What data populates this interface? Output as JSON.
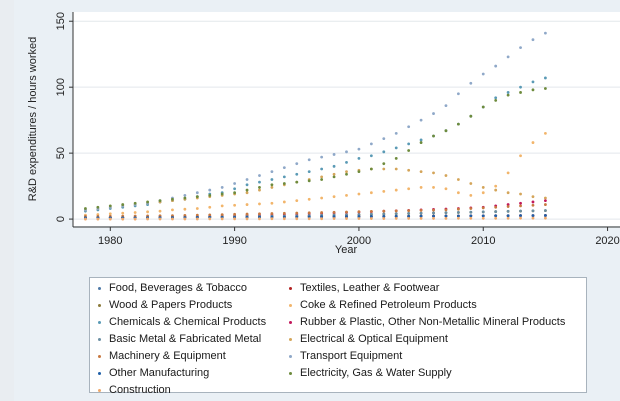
{
  "chart_data": {
    "type": "scatter",
    "xlabel": "Year",
    "ylabel": "R&D expenditures / hours worked",
    "xlim": [
      1977,
      2021
    ],
    "ylim": [
      -6,
      157
    ],
    "x_ticks": [
      1980,
      1990,
      2000,
      2010,
      2020
    ],
    "y_ticks": [
      0,
      50,
      100,
      150
    ],
    "grid": true,
    "legend_position": "bottom",
    "x": [
      1978,
      1979,
      1980,
      1981,
      1982,
      1983,
      1984,
      1985,
      1986,
      1987,
      1988,
      1989,
      1990,
      1991,
      1992,
      1993,
      1994,
      1995,
      1996,
      1997,
      1998,
      1999,
      2000,
      2001,
      2002,
      2003,
      2004,
      2005,
      2006,
      2007,
      2008,
      2009,
      2010,
      2011,
      2012,
      2013,
      2014,
      2015
    ],
    "series": [
      {
        "name": "Food, Beverages & Tobacco",
        "color": "#4e79a7",
        "values": [
          1,
          1,
          1,
          1,
          1.2,
          1.2,
          1.3,
          1.3,
          1.4,
          1.4,
          1.5,
          1.5,
          1.6,
          1.6,
          1.7,
          1.7,
          1.8,
          1.8,
          1.9,
          1.9,
          2,
          2,
          2,
          2.1,
          2.1,
          2.2,
          2.2,
          2.3,
          2.3,
          2.4,
          2.4,
          2.5,
          2.5,
          2.6,
          2.6,
          2.7,
          2.7,
          2.8
        ]
      },
      {
        "name": "Textiles, Leather & Footwear",
        "color": "#b22222",
        "values": [
          1,
          1,
          1,
          1,
          1.1,
          1.1,
          1.2,
          1.2,
          1.3,
          1.3,
          1.4,
          1.4,
          1.5,
          1.5,
          1.5,
          1.6,
          1.6,
          1.7,
          1.7,
          1.8,
          1.8,
          1.9,
          1.9,
          2,
          2,
          2.1,
          2.1,
          2.2,
          2.2,
          2.3,
          2.3,
          2.4,
          2.4,
          2.5,
          2.5,
          2.6,
          2.6,
          2.7
        ]
      },
      {
        "name": "Wood & Papers Products",
        "color": "#8c7b3a",
        "values": [
          1,
          1,
          1.1,
          1.2,
          1.2,
          1.3,
          1.4,
          1.5,
          1.6,
          1.7,
          1.8,
          1.9,
          2,
          2.1,
          2.2,
          2.3,
          2.4,
          2.5,
          2.6,
          2.8,
          3,
          3.2,
          3.4,
          3.6,
          3.8,
          4,
          4.2,
          4.4,
          4.6,
          4.8,
          5,
          5.2,
          5.4,
          5.6,
          5.8,
          6,
          6.2,
          6.4
        ]
      },
      {
        "name": "Coke & Refined Petroleum Products",
        "color": "#f2b56b",
        "values": [
          3,
          3.5,
          4,
          4.5,
          5,
          5.5,
          6,
          7,
          7.5,
          8,
          9,
          10,
          10.5,
          11,
          11.5,
          12,
          13,
          14,
          15,
          16,
          17,
          18,
          19,
          20,
          21,
          22,
          23,
          24,
          24,
          23,
          20,
          18,
          20,
          25,
          35,
          48,
          58,
          65
        ]
      },
      {
        "name": "Chemicals & Chemical Products",
        "color": "#5a9ab5",
        "values": [
          6,
          7,
          8,
          9,
          10,
          11,
          13,
          14,
          15,
          17,
          19,
          20,
          23,
          26,
          28,
          30,
          32,
          34,
          36,
          38,
          40,
          43,
          46,
          48,
          51,
          54,
          57,
          60,
          63,
          67,
          72,
          78,
          85,
          92,
          96,
          100,
          104,
          107
        ]
      },
      {
        "name": "Rubber & Plastic, Other Non-Metallic Mineral Products",
        "color": "#c2185b",
        "values": [
          1,
          1,
          1,
          1.2,
          1.3,
          1.4,
          1.5,
          1.6,
          1.8,
          2,
          2.2,
          2.4,
          2.6,
          2.8,
          3,
          3.2,
          3.5,
          3.8,
          4,
          4.3,
          4.6,
          5,
          5.3,
          5.6,
          6,
          6.3,
          6.6,
          7,
          7.3,
          7.6,
          8,
          8.5,
          9,
          10,
          11,
          12,
          13,
          14
        ]
      },
      {
        "name": "Basic Metal & Fabricated Metal",
        "color": "#6b8fa3",
        "values": [
          1,
          1,
          1,
          1.1,
          1.1,
          1.2,
          1.3,
          1.4,
          1.5,
          1.6,
          1.7,
          1.8,
          1.9,
          2,
          2.1,
          2.2,
          2.3,
          2.5,
          2.7,
          2.9,
          3.1,
          3.3,
          3.5,
          3.7,
          3.9,
          4.1,
          4.3,
          4.5,
          4.7,
          4.9,
          5.1,
          5.3,
          5.5,
          5.7,
          5.9,
          6.1,
          6.3,
          6.5
        ]
      },
      {
        "name": "Electrical & Optical Equipment",
        "color": "#d4a55a",
        "values": [
          7,
          8,
          9,
          10,
          11,
          12,
          13,
          14,
          15,
          16,
          17,
          18,
          19,
          20,
          22,
          24,
          26,
          28,
          30,
          32,
          34,
          36,
          37,
          38,
          38,
          38,
          37,
          36,
          35,
          33,
          30,
          27,
          24,
          22,
          20,
          19,
          17,
          16
        ]
      },
      {
        "name": "Machinery & Equipment",
        "color": "#c87941",
        "values": [
          2,
          2,
          2.1,
          2.2,
          2.3,
          2.4,
          2.5,
          2.6,
          2.8,
          3,
          3.2,
          3.4,
          3.6,
          3.8,
          4,
          4.2,
          4.4,
          4.6,
          4.8,
          5,
          5.2,
          5.4,
          5.6,
          5.8,
          6,
          6.2,
          6.4,
          6.6,
          6.8,
          7,
          7.5,
          8,
          8.5,
          9,
          9.5,
          10,
          10.5,
          11
        ]
      },
      {
        "name": "Transport Equipment",
        "color": "#8fa8c8",
        "values": [
          7,
          8,
          9,
          10,
          11,
          12,
          14,
          16,
          18,
          20,
          22,
          24,
          27,
          30,
          33,
          36,
          39,
          42,
          45,
          47,
          49,
          51,
          53,
          57,
          61,
          65,
          70,
          75,
          80,
          86,
          95,
          103,
          110,
          116,
          123,
          130,
          136,
          141
        ]
      },
      {
        "name": "Other Manufacturing",
        "color": "#1f5fa8",
        "values": [
          1,
          1,
          1,
          1,
          1,
          1.1,
          1.1,
          1.2,
          1.2,
          1.3,
          1.3,
          1.4,
          1.4,
          1.5,
          1.5,
          1.6,
          1.6,
          1.7,
          1.7,
          1.8,
          1.8,
          1.9,
          1.9,
          2,
          2,
          2.1,
          2.1,
          2.2,
          2.2,
          2.3,
          2.3,
          2.4,
          2.4,
          2.5,
          2.5,
          2.6,
          2.6,
          2.7
        ]
      },
      {
        "name": "Electricity, Gas & Water Supply",
        "color": "#6e8b3d",
        "values": [
          8,
          9,
          10,
          11,
          12,
          13,
          14,
          15,
          16,
          17,
          18,
          19,
          20,
          22,
          24,
          26,
          27,
          28,
          29,
          30,
          32,
          34,
          36,
          38,
          42,
          46,
          52,
          58,
          63,
          67,
          72,
          78,
          85,
          90,
          94,
          96,
          98,
          99
        ]
      },
      {
        "name": "Construction",
        "color": "#f0a96b",
        "values": [
          0,
          0,
          0,
          0,
          0,
          0.1,
          0.1,
          0.1,
          0.1,
          0.1,
          0.2,
          0.2,
          0.2,
          0.2,
          0.2,
          0.3,
          0.3,
          0.3,
          0.3,
          0.3,
          0.4,
          0.4,
          0.4,
          0.4,
          0.4,
          0.5,
          0.5,
          0.5,
          0.5,
          0.5,
          0.6,
          0.6,
          0.6,
          0.6,
          0.6,
          0.7,
          0.7,
          0.7
        ]
      }
    ]
  }
}
